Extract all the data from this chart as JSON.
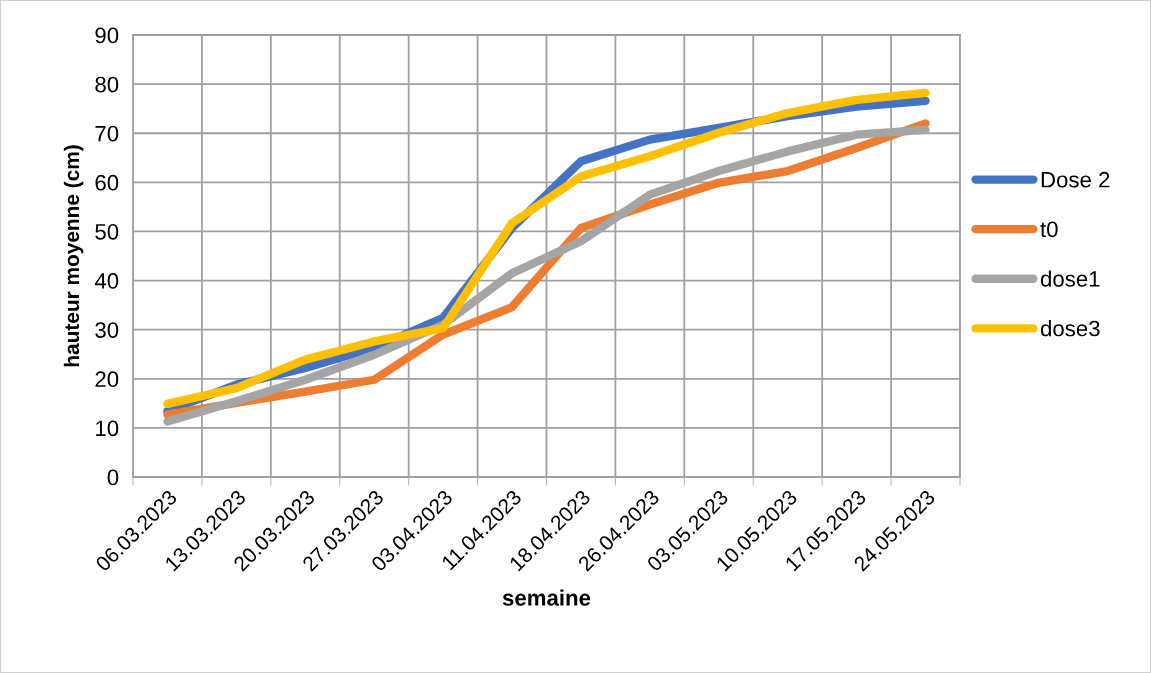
{
  "chart_data": {
    "type": "line",
    "xlabel": "semaine",
    "ylabel": "hauteur moyenne (cm)",
    "categories": [
      "06.03.2023",
      "13.03.2023",
      "20.03.2023",
      "27.03.2023",
      "03.04.2023",
      "11.04.2023",
      "18.04.2023",
      "26.04.2023",
      "03.05.2023",
      "10.05.2023",
      "17.05.2023",
      "24.05.2023"
    ],
    "series": [
      {
        "name": "Dose 2",
        "color": "#4472c4",
        "values": [
          13.4,
          18.8,
          22.2,
          26.3,
          32.4,
          50.7,
          64.3,
          68.7,
          71.1,
          73.5,
          75.4,
          76.6
        ]
      },
      {
        "name": "t0",
        "color": "#ed7d31",
        "values": [
          12.7,
          15.1,
          17.4,
          19.8,
          29.0,
          34.6,
          50.7,
          55.5,
          59.9,
          62.3,
          67.0,
          72.0
        ]
      },
      {
        "name": "dose1",
        "color": "#a5a5a5",
        "values": [
          11.3,
          15.4,
          19.8,
          24.9,
          31.0,
          41.5,
          48.0,
          57.5,
          62.3,
          66.3,
          69.7,
          70.7
        ]
      },
      {
        "name": "dose3",
        "color": "#ffc000",
        "values": [
          14.9,
          18.1,
          23.9,
          27.6,
          30.3,
          51.7,
          61.2,
          65.3,
          70.1,
          74.1,
          76.8,
          78.2
        ]
      }
    ],
    "ylim": [
      0,
      90
    ],
    "yticks": [
      0,
      10,
      20,
      30,
      40,
      50,
      60,
      70,
      80,
      90
    ],
    "grid": true,
    "legend": "right",
    "marker": "none",
    "line_style": "solid"
  }
}
